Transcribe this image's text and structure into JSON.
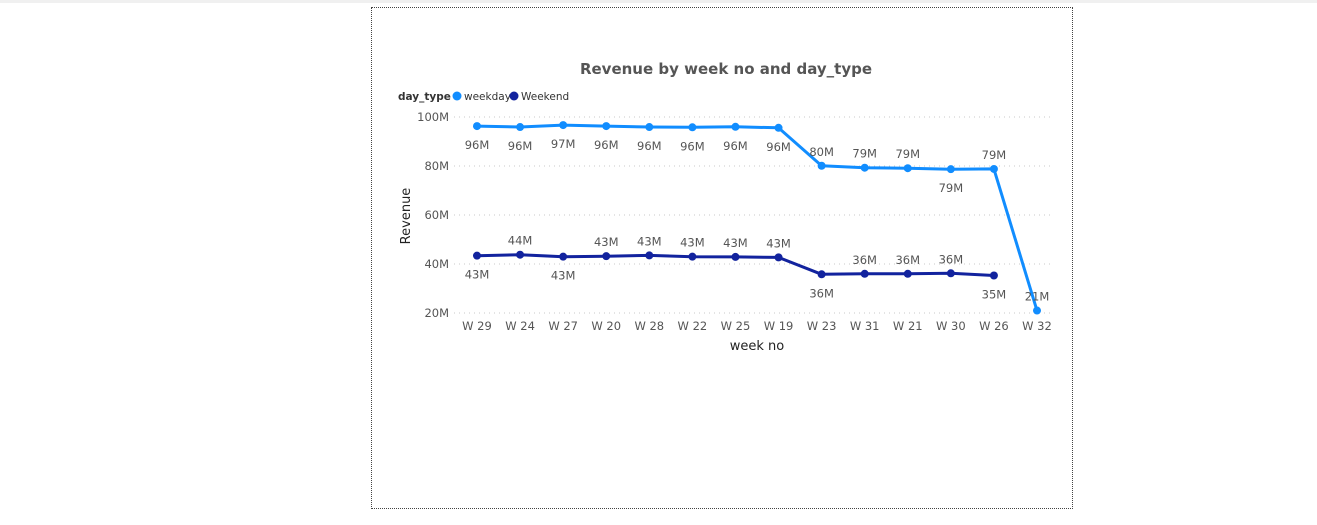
{
  "chart_data": {
    "type": "line",
    "title": "Revenue by week no and day_type",
    "xlabel": "week no",
    "ylabel": "Revenue",
    "legend_title": "day_type",
    "legend_position": "top-left",
    "grid": true,
    "ylim": [
      20,
      100
    ],
    "yticks": [
      20,
      40,
      60,
      80,
      100
    ],
    "ytick_labels": [
      "20M",
      "40M",
      "60M",
      "80M",
      "100M"
    ],
    "categories": [
      "W 29",
      "W 24",
      "W 27",
      "W 20",
      "W 28",
      "W 22",
      "W 25",
      "W 19",
      "W 23",
      "W 31",
      "W 21",
      "W 30",
      "W 26",
      "W 32"
    ],
    "series": [
      {
        "name": "weekday",
        "color": "#118DFF",
        "values": [
          96.3,
          95.9,
          96.7,
          96.3,
          95.9,
          95.8,
          96.0,
          95.6,
          80.1,
          79.3,
          79.1,
          78.7,
          78.8,
          21.0
        ],
        "labels": [
          "96M",
          "96M",
          "97M",
          "96M",
          "96M",
          "96M",
          "96M",
          "96M",
          "80M",
          "79M",
          "79M",
          "79M",
          "79M",
          "21M"
        ],
        "label_pos": [
          "below",
          "below",
          "below",
          "below",
          "below",
          "below",
          "below",
          "below",
          "above",
          "above",
          "above",
          "below",
          "above",
          "above"
        ]
      },
      {
        "name": "Weekend",
        "color": "#12239E",
        "values": [
          43.4,
          43.8,
          43.0,
          43.2,
          43.5,
          43.0,
          42.9,
          42.7,
          35.8,
          36.0,
          36.0,
          36.2,
          35.3,
          null
        ],
        "labels": [
          "43M",
          "44M",
          "43M",
          "43M",
          "43M",
          "43M",
          "43M",
          "43M",
          "36M",
          "36M",
          "36M",
          "36M",
          "35M",
          ""
        ],
        "label_pos": [
          "below",
          "above",
          "below",
          "above",
          "above",
          "above",
          "above",
          "above",
          "below",
          "above",
          "above",
          "above",
          "below",
          "above"
        ]
      }
    ]
  }
}
